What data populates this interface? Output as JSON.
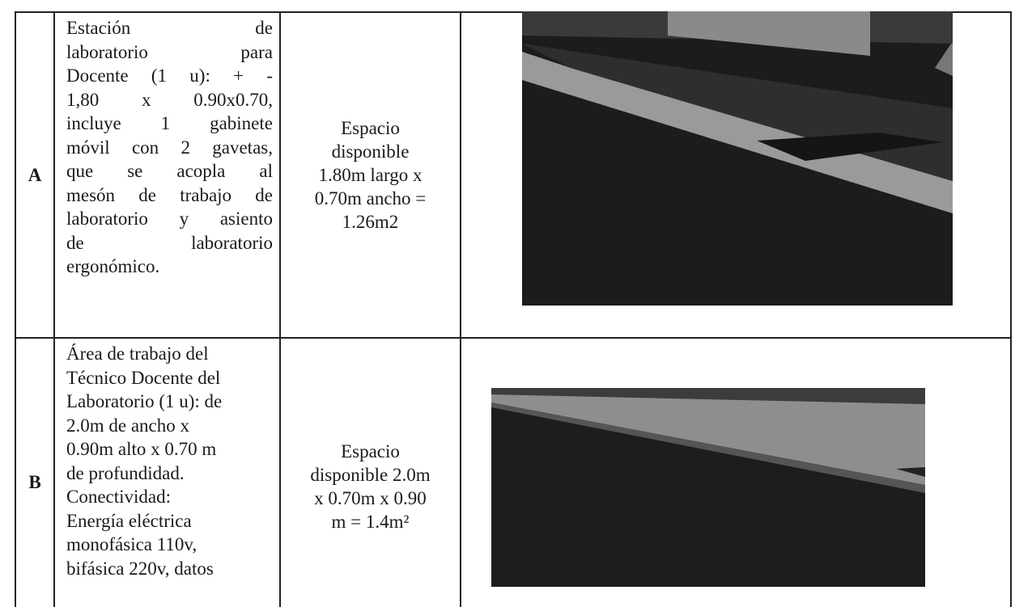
{
  "table": {
    "rows": [
      {
        "letter": "A",
        "description": [
          "Estación de",
          "laboratorio para",
          "Docente (1 u): + -",
          "1,80 x 0.90x0.70,",
          "incluye 1 gabinete",
          "móvil con 2 gavetas,",
          "que se acopla al",
          "mesón de trabajo de",
          "laboratorio y asiento",
          "de laboratorio",
          "ergonómico."
        ],
        "space": [
          "Espacio",
          "disponible",
          "1.80m largo x",
          "0.70m ancho =",
          "1.26m2"
        ]
      },
      {
        "letter": "B",
        "description": [
          "Área de trabajo del",
          "Técnico Docente del",
          "Laboratorio (1 u): de",
          "2.0m de ancho x",
          "0.90m alto x 0.70 m",
          "de profundidad.",
          "Conectividad:",
          "Energía eléctrica",
          "monofásica 110v,",
          "bifásica 220v, datos"
        ],
        "space": [
          "Espacio",
          "disponible 2.0m",
          "x 0.70m x 0.90",
          "m = 1.4m²"
        ]
      }
    ]
  }
}
